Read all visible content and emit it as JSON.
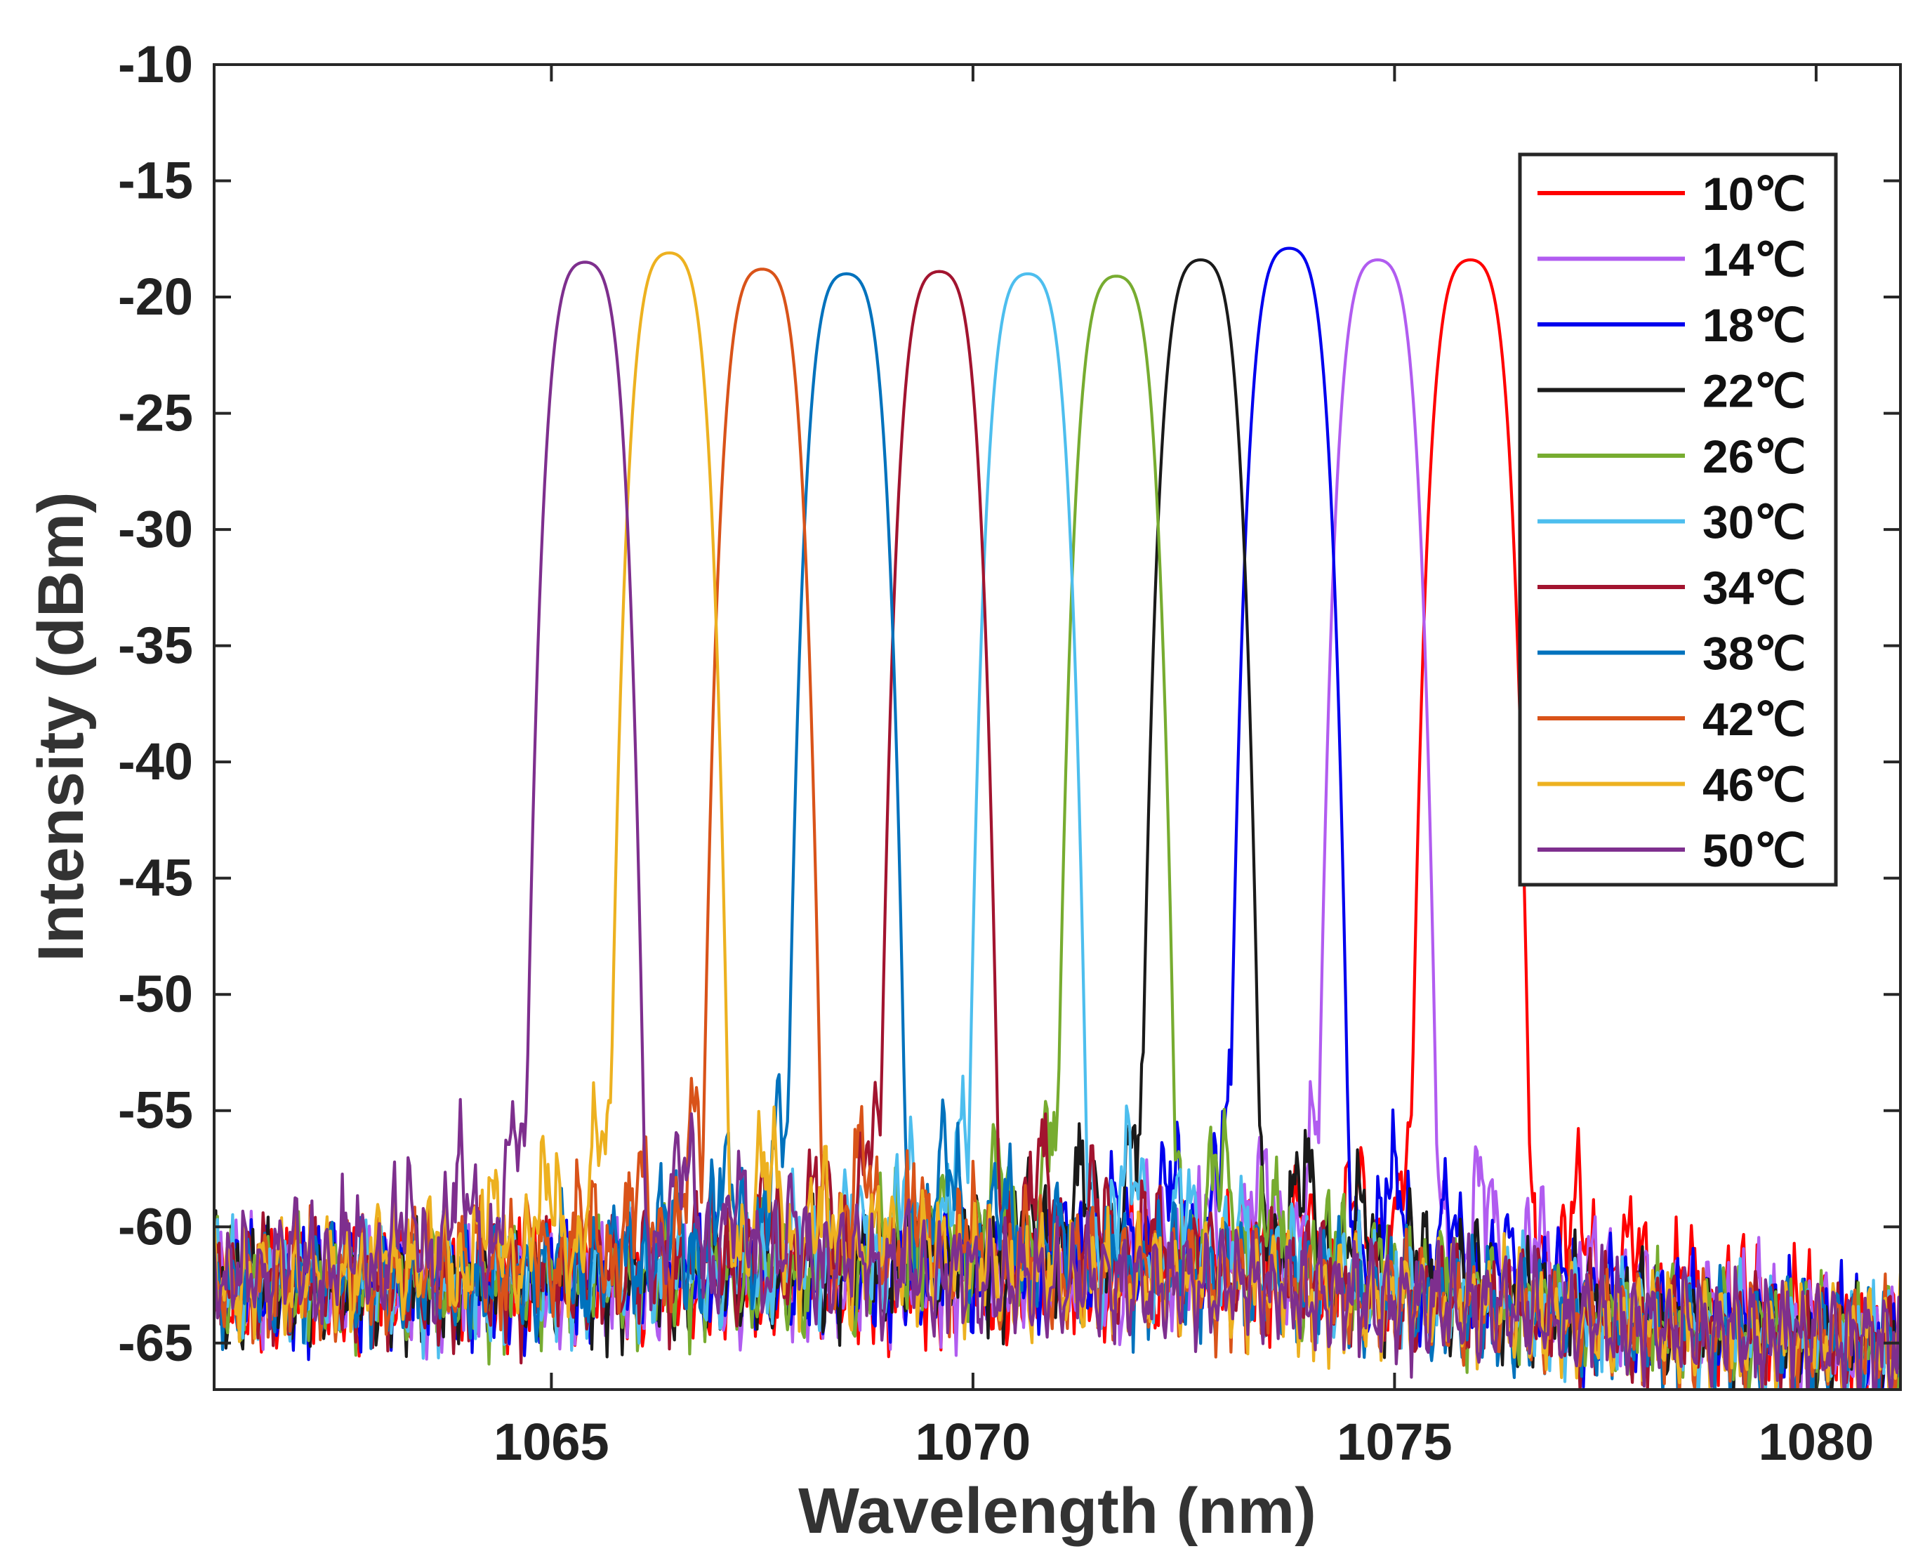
{
  "chart_data": {
    "type": "line",
    "xlabel": "Wavelength (nm)",
    "ylabel": "Intensity (dBm)",
    "xlim": [
      1061,
      1081
    ],
    "ylim": [
      -67,
      -10
    ],
    "xticks": [
      1065,
      1070,
      1075,
      1080
    ],
    "xtick_labels": [
      "1065",
      "1070",
      "1075",
      "1080"
    ],
    "yticks": [
      -10,
      -15,
      -20,
      -25,
      -30,
      -35,
      -40,
      -45,
      -50,
      -55,
      -60,
      -65
    ],
    "ytick_labels": [
      "-10",
      "-15",
      "-20",
      "-25",
      "-30",
      "-35",
      "-40",
      "-45",
      "-50",
      "-55",
      "-60",
      "-65"
    ],
    "grid": false,
    "legend_position": "top-right",
    "series": [
      {
        "name": "10℃",
        "color": "#ff0000",
        "peak_x": 1075.9,
        "peak_y": -18.4
      },
      {
        "name": "14℃",
        "color": "#b15cf0",
        "peak_x": 1074.8,
        "peak_y": -18.4
      },
      {
        "name": "18℃",
        "color": "#0000ee",
        "peak_x": 1073.75,
        "peak_y": -17.9
      },
      {
        "name": "22℃",
        "color": "#1a1a1a",
        "peak_x": 1072.7,
        "peak_y": -18.4
      },
      {
        "name": "26℃",
        "color": "#77ac30",
        "peak_x": 1071.7,
        "peak_y": -19.1
      },
      {
        "name": "30℃",
        "color": "#4dbeee",
        "peak_x": 1070.65,
        "peak_y": -19.0
      },
      {
        "name": "34℃",
        "color": "#a2142f",
        "peak_x": 1069.6,
        "peak_y": -18.9
      },
      {
        "name": "38℃",
        "color": "#0072bd",
        "peak_x": 1068.5,
        "peak_y": -19.0
      },
      {
        "name": "42℃",
        "color": "#d95319",
        "peak_x": 1067.5,
        "peak_y": -18.8
      },
      {
        "name": "46℃",
        "color": "#edb120",
        "peak_x": 1066.4,
        "peak_y": -18.1
      },
      {
        "name": "50℃",
        "color": "#7e2f8e",
        "peak_x": 1065.4,
        "peak_y": -18.5
      }
    ]
  }
}
